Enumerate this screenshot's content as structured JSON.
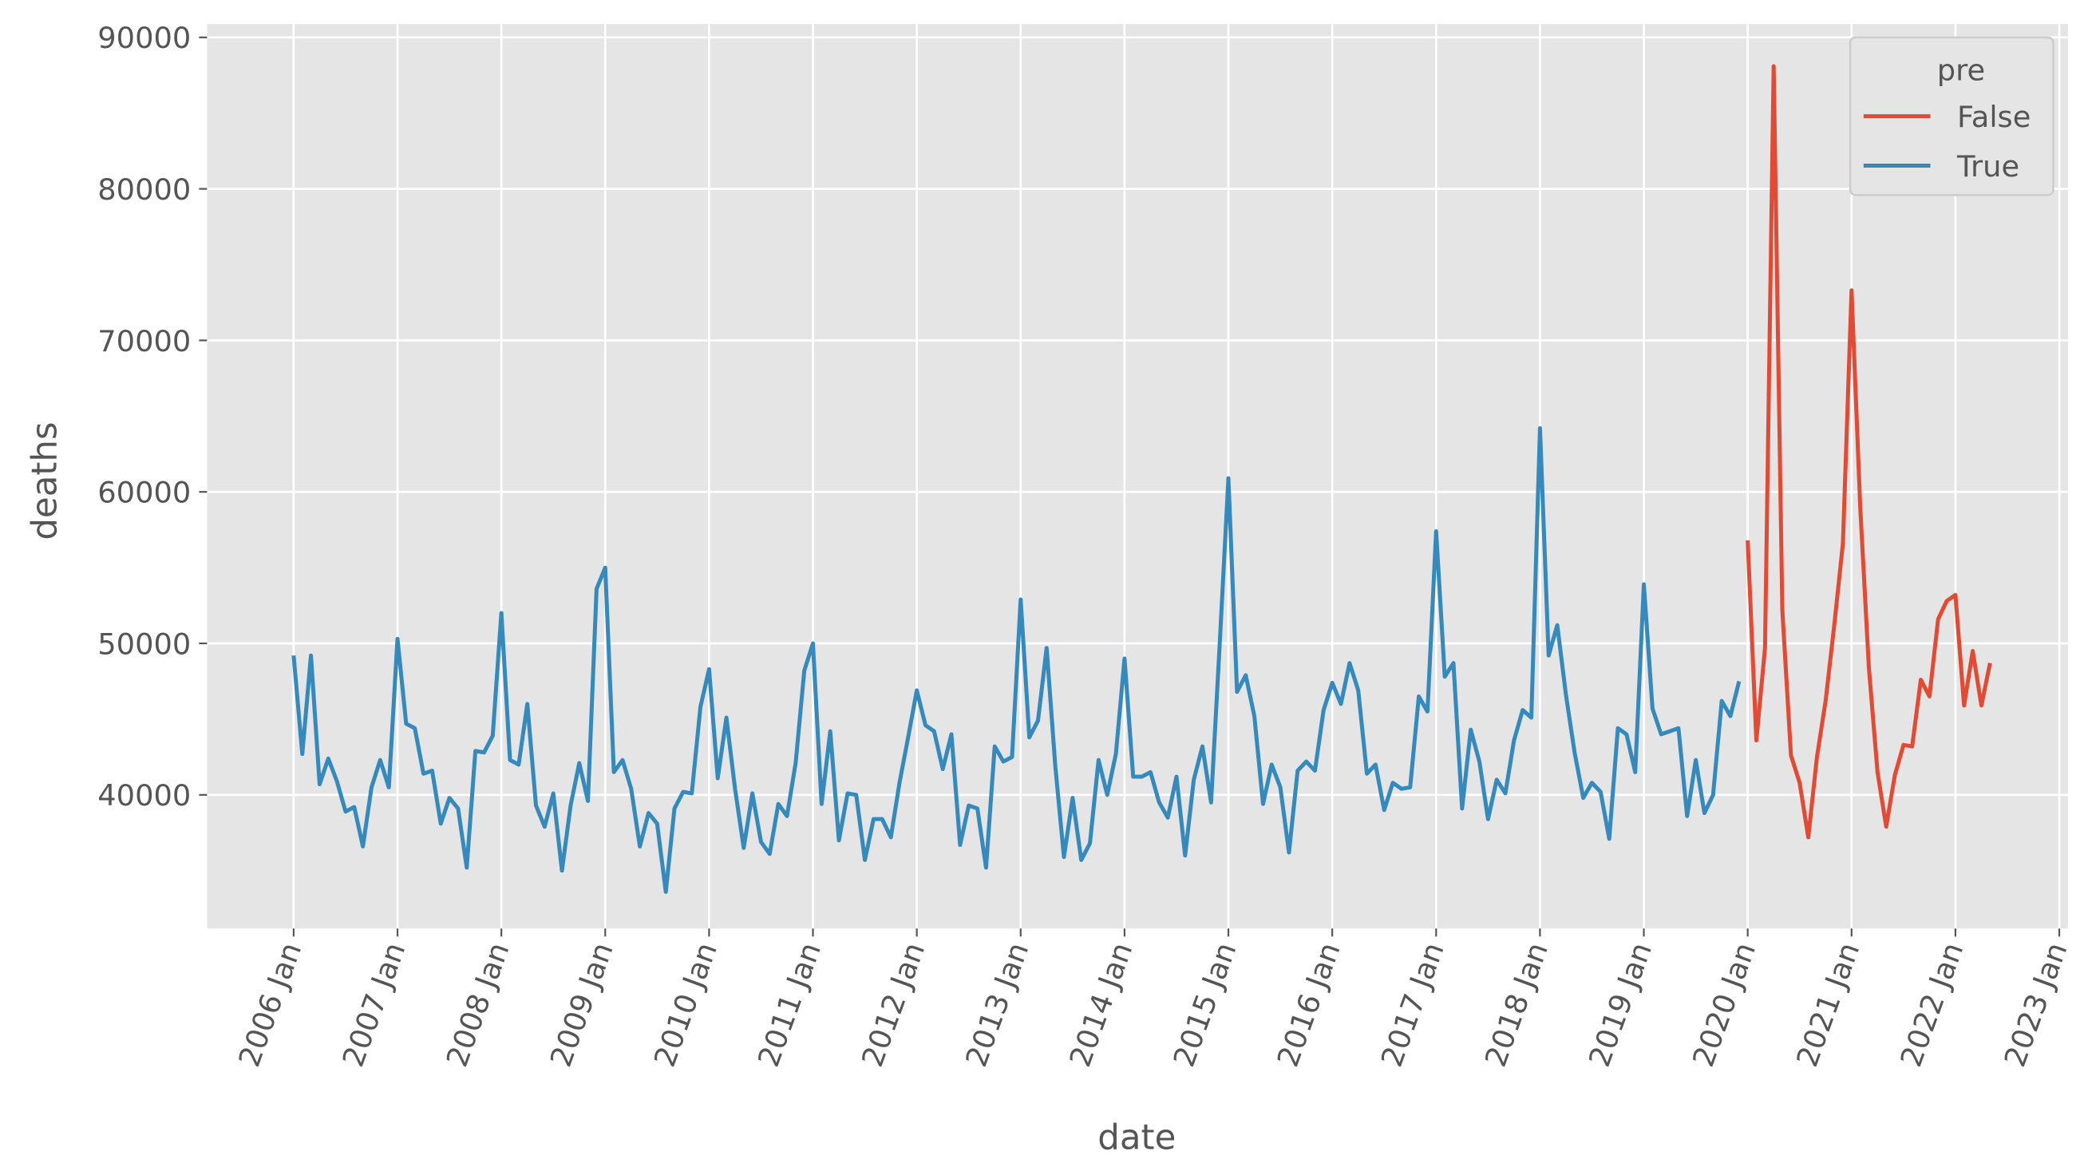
{
  "chart_data": {
    "type": "line",
    "x_label": "date",
    "y_label": "deaths",
    "legend_title": "pre",
    "legend": "upper right",
    "grid": true,
    "xlim": [
      "2005-03",
      "2023-02"
    ],
    "ylim": [
      31180,
      90880
    ],
    "yticks": [
      40000,
      50000,
      60000,
      70000,
      80000,
      90000
    ],
    "xticks": [
      {
        "value": "2006-01",
        "label": "2006 Jan"
      },
      {
        "value": "2007-01",
        "label": "2007 Jan"
      },
      {
        "value": "2008-01",
        "label": "2008 Jan"
      },
      {
        "value": "2009-01",
        "label": "2009 Jan"
      },
      {
        "value": "2010-01",
        "label": "2010 Jan"
      },
      {
        "value": "2011-01",
        "label": "2011 Jan"
      },
      {
        "value": "2012-01",
        "label": "2012 Jan"
      },
      {
        "value": "2013-01",
        "label": "2013 Jan"
      },
      {
        "value": "2014-01",
        "label": "2014 Jan"
      },
      {
        "value": "2015-01",
        "label": "2015 Jan"
      },
      {
        "value": "2016-01",
        "label": "2016 Jan"
      },
      {
        "value": "2017-01",
        "label": "2017 Jan"
      },
      {
        "value": "2018-01",
        "label": "2018 Jan"
      },
      {
        "value": "2019-01",
        "label": "2019 Jan"
      },
      {
        "value": "2020-01",
        "label": "2020 Jan"
      },
      {
        "value": "2021-01",
        "label": "2021 Jan"
      },
      {
        "value": "2022-01",
        "label": "2022 Jan"
      },
      {
        "value": "2023-01",
        "label": "2023 Jan"
      }
    ],
    "series": [
      {
        "name": "False",
        "color": "#e24a33",
        "x": [
          "2020-01",
          "2020-02",
          "2020-03",
          "2020-04",
          "2020-05",
          "2020-06",
          "2020-07",
          "2020-08",
          "2020-09",
          "2020-10",
          "2020-11",
          "2020-12",
          "2021-01",
          "2021-02",
          "2021-03",
          "2021-04",
          "2021-05",
          "2021-06",
          "2021-07",
          "2021-08",
          "2021-09",
          "2021-10",
          "2021-11",
          "2021-12",
          "2022-01",
          "2022-02",
          "2022-03",
          "2022-04",
          "2022-05"
        ],
        "values": [
          56800,
          43600,
          49700,
          88100,
          52200,
          42600,
          40800,
          37200,
          42500,
          46200,
          51200,
          56600,
          73300,
          59000,
          48400,
          41500,
          37900,
          41300,
          43300,
          43200,
          47600,
          46500,
          51600,
          52800,
          53200,
          45900,
          49500,
          45900,
          48700
        ]
      },
      {
        "name": "True",
        "color": "#348abd",
        "x": [
          "2006-01",
          "2006-02",
          "2006-03",
          "2006-04",
          "2006-05",
          "2006-06",
          "2006-07",
          "2006-08",
          "2006-09",
          "2006-10",
          "2006-11",
          "2006-12",
          "2007-01",
          "2007-02",
          "2007-03",
          "2007-04",
          "2007-05",
          "2007-06",
          "2007-07",
          "2007-08",
          "2007-09",
          "2007-10",
          "2007-11",
          "2007-12",
          "2008-01",
          "2008-02",
          "2008-03",
          "2008-04",
          "2008-05",
          "2008-06",
          "2008-07",
          "2008-08",
          "2008-09",
          "2008-10",
          "2008-11",
          "2008-12",
          "2009-01",
          "2009-02",
          "2009-03",
          "2009-04",
          "2009-05",
          "2009-06",
          "2009-07",
          "2009-08",
          "2009-09",
          "2009-10",
          "2009-11",
          "2009-12",
          "2010-01",
          "2010-02",
          "2010-03",
          "2010-04",
          "2010-05",
          "2010-06",
          "2010-07",
          "2010-08",
          "2010-09",
          "2010-10",
          "2010-11",
          "2010-12",
          "2011-01",
          "2011-02",
          "2011-03",
          "2011-04",
          "2011-05",
          "2011-06",
          "2011-07",
          "2011-08",
          "2011-09",
          "2011-10",
          "2011-11",
          "2011-12",
          "2012-01",
          "2012-02",
          "2012-03",
          "2012-04",
          "2012-05",
          "2012-06",
          "2012-07",
          "2012-08",
          "2012-09",
          "2012-10",
          "2012-11",
          "2012-12",
          "2013-01",
          "2013-02",
          "2013-03",
          "2013-04",
          "2013-05",
          "2013-06",
          "2013-07",
          "2013-08",
          "2013-09",
          "2013-10",
          "2013-11",
          "2013-12",
          "2014-01",
          "2014-02",
          "2014-03",
          "2014-04",
          "2014-05",
          "2014-06",
          "2014-07",
          "2014-08",
          "2014-09",
          "2014-10",
          "2014-11",
          "2014-12",
          "2015-01",
          "2015-02",
          "2015-03",
          "2015-04",
          "2015-05",
          "2015-06",
          "2015-07",
          "2015-08",
          "2015-09",
          "2015-10",
          "2015-11",
          "2015-12",
          "2016-01",
          "2016-02",
          "2016-03",
          "2016-04",
          "2016-05",
          "2016-06",
          "2016-07",
          "2016-08",
          "2016-09",
          "2016-10",
          "2016-11",
          "2016-12",
          "2017-01",
          "2017-02",
          "2017-03",
          "2017-04",
          "2017-05",
          "2017-06",
          "2017-07",
          "2017-08",
          "2017-09",
          "2017-10",
          "2017-11",
          "2017-12",
          "2018-01",
          "2018-02",
          "2018-03",
          "2018-04",
          "2018-05",
          "2018-06",
          "2018-07",
          "2018-08",
          "2018-09",
          "2018-10",
          "2018-11",
          "2018-12",
          "2019-01",
          "2019-02",
          "2019-03",
          "2019-04",
          "2019-05",
          "2019-06",
          "2019-07",
          "2019-08",
          "2019-09",
          "2019-10",
          "2019-11",
          "2019-12"
        ],
        "values": [
          49200,
          42700,
          49200,
          40700,
          42400,
          40900,
          38900,
          39200,
          36600,
          40500,
          42300,
          40500,
          50300,
          44700,
          44400,
          41400,
          41600,
          38100,
          39800,
          39100,
          35200,
          42900,
          42800,
          43900,
          52000,
          42300,
          42000,
          46000,
          39300,
          37900,
          40100,
          35000,
          39300,
          42100,
          39600,
          53600,
          55000,
          41500,
          42300,
          40400,
          36600,
          38800,
          38100,
          33600,
          39100,
          40200,
          40100,
          45800,
          48300,
          41100,
          45100,
          40400,
          36500,
          40100,
          36900,
          36100,
          39400,
          38600,
          42100,
          48200,
          50000,
          39400,
          44200,
          37000,
          40100,
          40000,
          35700,
          38400,
          38400,
          37200,
          40800,
          43800,
          46900,
          44600,
          44200,
          41700,
          44000,
          36700,
          39300,
          39100,
          35200,
          43200,
          42200,
          42500,
          52900,
          43800,
          44900,
          49700,
          41900,
          35900,
          39800,
          35700,
          36800,
          42300,
          40000,
          42700,
          49000,
          41200,
          41200,
          41500,
          39500,
          38500,
          41200,
          36000,
          41000,
          43200,
          39500,
          50000,
          60900,
          46800,
          47900,
          45200,
          39400,
          42000,
          40500,
          36200,
          41600,
          42200,
          41600,
          45600,
          47400,
          46000,
          48700,
          46900,
          41400,
          42000,
          39000,
          40800,
          40400,
          40500,
          46500,
          45500,
          57400,
          47800,
          48700,
          39100,
          44300,
          42200,
          38400,
          41000,
          40100,
          43600,
          45600,
          45100,
          64200,
          49200,
          51200,
          46600,
          42800,
          39800,
          40800,
          40200,
          37100,
          44400,
          44000,
          41500,
          53900,
          45700,
          44000,
          44200,
          44400,
          38600,
          42300,
          38800,
          40000,
          46200,
          45200,
          47500
        ]
      }
    ]
  }
}
